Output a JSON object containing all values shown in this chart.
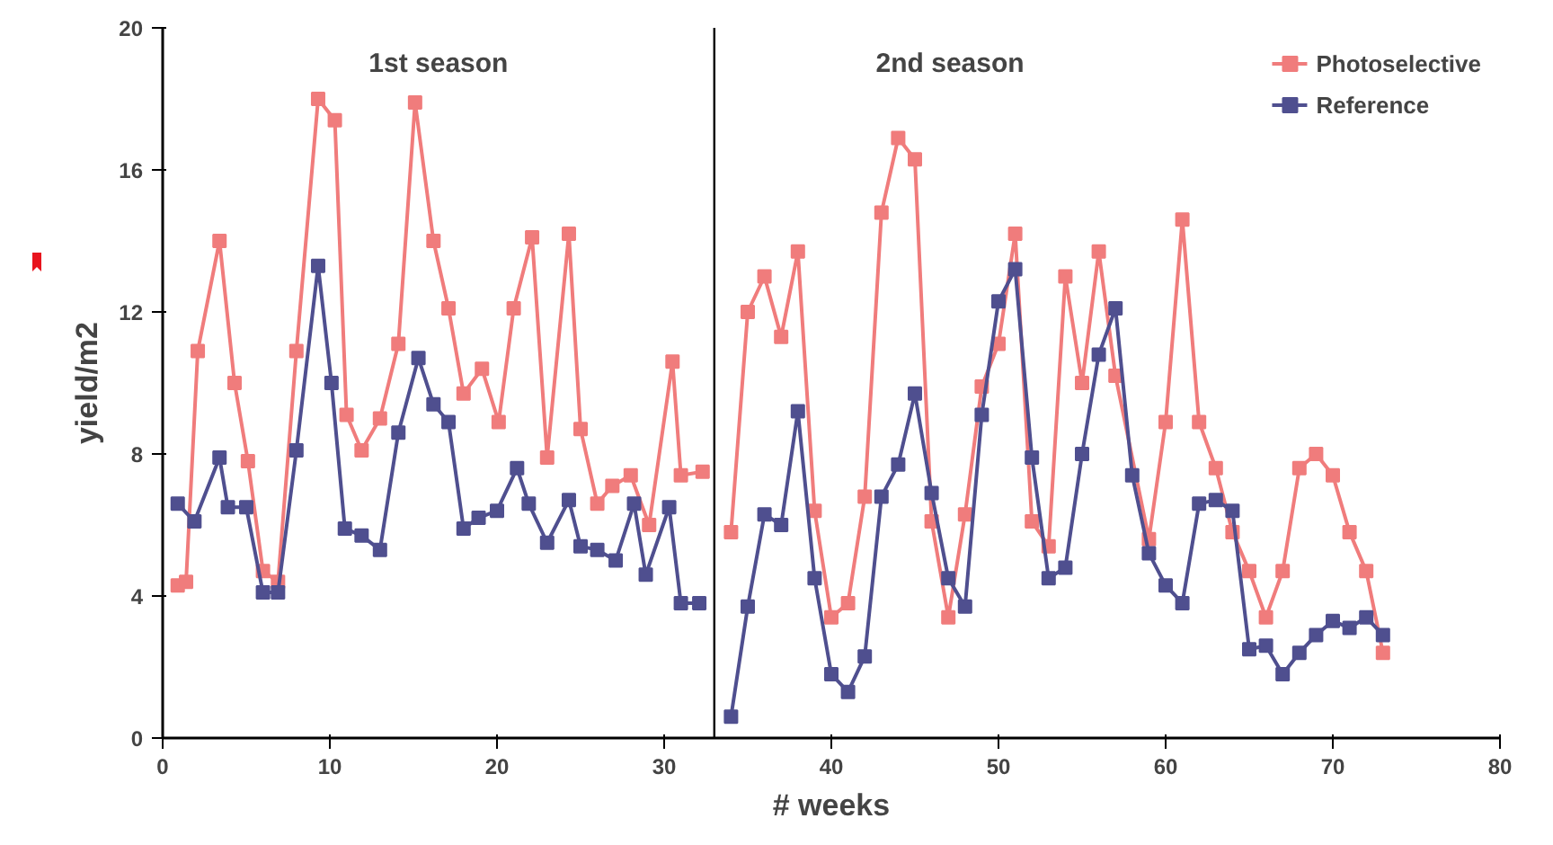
{
  "chart_data": {
    "type": "line",
    "xlabel": "# weeks",
    "ylabel": "yield/m2",
    "annotations": [
      "1st season",
      "2nd season"
    ],
    "xlim": [
      0,
      80
    ],
    "xticks": [
      0,
      10,
      20,
      30,
      40,
      50,
      60,
      70,
      80
    ],
    "ylim": [
      0,
      20
    ],
    "yticks": [
      0,
      4,
      8,
      12,
      16,
      20
    ],
    "grid": false,
    "legend": "top right",
    "marker": "square",
    "line_style": "solid",
    "ref_lines": [
      {
        "axis": "x",
        "value": 33,
        "color": "#000000"
      }
    ],
    "series": [
      {
        "name": "Photoselective",
        "color": "#f07c7c",
        "x": [
          0.9,
          1.4,
          2.1,
          3.4,
          4.3,
          5.1,
          6.0,
          6.9,
          8.0,
          9.3,
          10.3,
          11.0,
          11.9,
          13.0,
          14.1,
          15.1,
          16.2,
          17.1,
          18.0,
          19.1,
          20.1,
          21.0,
          22.1,
          23.0,
          24.3,
          25.0,
          26.0,
          26.9,
          28.0,
          29.1,
          30.5,
          31.0,
          32.3,
          33,
          34,
          35,
          36,
          37,
          38,
          39,
          40,
          41,
          42,
          43,
          44,
          45,
          46,
          47,
          48,
          49,
          50,
          51,
          52,
          53,
          54,
          55,
          56,
          57,
          59,
          60,
          61,
          62,
          63,
          64,
          65,
          66,
          67,
          68,
          69,
          70,
          71,
          72,
          73
        ],
        "values": [
          4.3,
          4.4,
          10.9,
          14.0,
          10.0,
          7.8,
          4.7,
          4.4,
          10.9,
          18.0,
          17.4,
          9.1,
          8.1,
          9.0,
          11.1,
          17.9,
          14.0,
          12.1,
          9.7,
          10.4,
          8.9,
          12.1,
          14.1,
          7.9,
          14.2,
          8.7,
          6.6,
          7.1,
          7.4,
          6.0,
          10.6,
          7.4,
          7.5,
          null,
          5.8,
          12.0,
          13.0,
          11.3,
          13.7,
          6.4,
          3.4,
          3.8,
          6.8,
          14.8,
          16.9,
          16.3,
          6.1,
          3.4,
          6.3,
          9.9,
          11.1,
          14.2,
          6.1,
          5.4,
          13.0,
          10.0,
          13.7,
          10.2,
          5.6,
          8.9,
          14.6,
          8.9,
          7.6,
          5.8,
          4.7,
          3.4,
          4.7,
          7.6,
          8.0,
          7.4,
          5.8,
          4.7,
          2.4
        ]
      },
      {
        "name": "Reference",
        "color": "#4f4f8f",
        "x": [
          0.9,
          1.9,
          3.4,
          3.9,
          5.0,
          6.0,
          6.9,
          8.0,
          9.3,
          10.1,
          10.9,
          11.9,
          13.0,
          14.1,
          15.3,
          16.2,
          17.1,
          18.0,
          18.9,
          20.0,
          21.2,
          21.9,
          23.0,
          24.3,
          25.0,
          26.0,
          27.1,
          28.2,
          28.9,
          30.3,
          31.0,
          32.1,
          33,
          34,
          35,
          36,
          37,
          38,
          39,
          40,
          41,
          42,
          43,
          44,
          45,
          46,
          47,
          48,
          49,
          50,
          51,
          52,
          53,
          54,
          55,
          56,
          57,
          58,
          59,
          60,
          61,
          62,
          63,
          64,
          65,
          66,
          67,
          68,
          69,
          70,
          71,
          72,
          73
        ],
        "values": [
          6.6,
          6.1,
          7.9,
          6.5,
          6.5,
          4.1,
          4.1,
          8.1,
          13.3,
          10.0,
          5.9,
          5.7,
          5.3,
          8.6,
          10.7,
          9.4,
          8.9,
          5.9,
          6.2,
          6.4,
          7.6,
          6.6,
          5.5,
          6.7,
          5.4,
          5.3,
          5.0,
          6.6,
          4.6,
          6.5,
          3.8,
          3.8,
          null,
          0.6,
          3.7,
          6.3,
          6.0,
          9.2,
          4.5,
          1.8,
          1.3,
          2.3,
          6.8,
          7.7,
          9.7,
          6.9,
          4.5,
          3.7,
          9.1,
          12.3,
          13.2,
          7.9,
          4.5,
          4.8,
          8.0,
          10.8,
          12.1,
          7.4,
          5.2,
          4.3,
          3.8,
          6.6,
          6.7,
          6.4,
          2.5,
          2.6,
          1.8,
          2.4,
          2.9,
          3.3,
          3.1,
          3.4,
          2.9
        ]
      }
    ]
  }
}
